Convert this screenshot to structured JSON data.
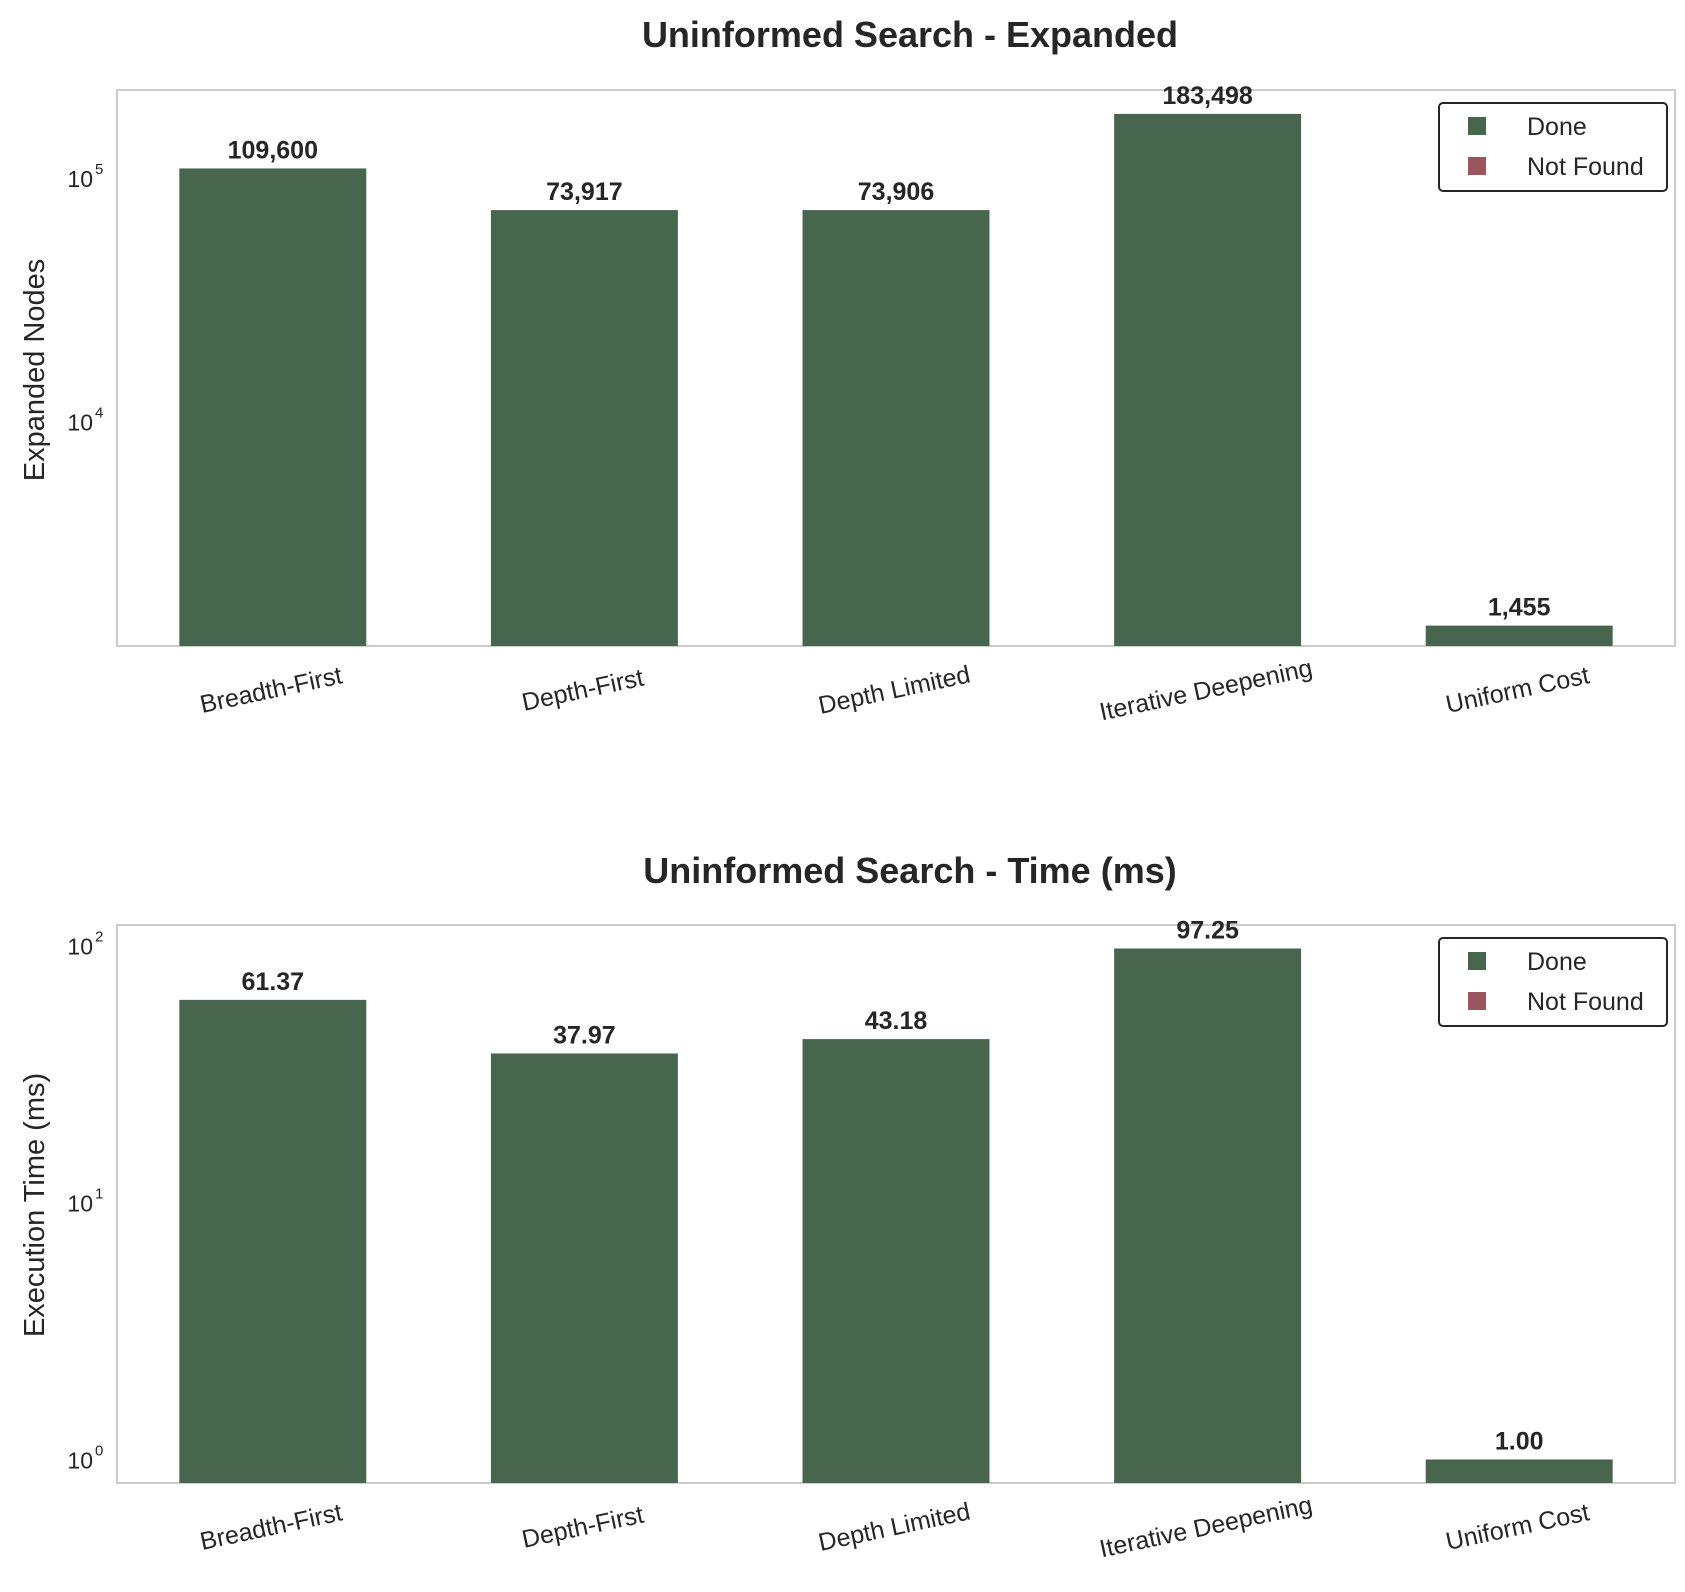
{
  "chart_data": [
    {
      "type": "bar",
      "title": "Uninformed Search - Expanded",
      "xlabel": "",
      "ylabel": "Expanded Nodes",
      "yscale": "log",
      "ylim": [
        1200,
        230000
      ],
      "yticks": [
        {
          "base": "10",
          "exp": "4",
          "value": 10000
        },
        {
          "base": "10",
          "exp": "5",
          "value": 100000
        }
      ],
      "categories": [
        "Breadth-First",
        "Depth-First",
        "Depth Limited",
        "Iterative Deepening",
        "Uniform Cost"
      ],
      "values": [
        109600,
        73917,
        73906,
        183498,
        1455
      ],
      "value_labels": [
        "109,600",
        "73,917",
        "73,906",
        "183,498",
        "1,455"
      ],
      "status": [
        "Done",
        "Done",
        "Done",
        "Done",
        "Done"
      ],
      "legend": {
        "placement": "top-right",
        "entries": [
          {
            "label": "Done",
            "color": "#48664e"
          },
          {
            "label": "Not Found",
            "color": "#9b555c"
          }
        ]
      },
      "grid": false
    },
    {
      "type": "bar",
      "title": "Uninformed Search - Time (ms)",
      "xlabel": "",
      "ylabel": "Execution Time (ms)",
      "yscale": "log",
      "ylim": [
        0.81,
        120
      ],
      "yticks": [
        {
          "base": "10",
          "exp": "0",
          "value": 1
        },
        {
          "base": "10",
          "exp": "1",
          "value": 10
        },
        {
          "base": "10",
          "exp": "2",
          "value": 100
        }
      ],
      "categories": [
        "Breadth-First",
        "Depth-First",
        "Depth Limited",
        "Iterative Deepening",
        "Uniform Cost"
      ],
      "values": [
        61.37,
        37.97,
        43.18,
        97.25,
        1.0
      ],
      "value_labels": [
        "61.37",
        "37.97",
        "43.18",
        "97.25",
        "1.00"
      ],
      "status": [
        "Done",
        "Done",
        "Done",
        "Done",
        "Done"
      ],
      "legend": {
        "placement": "top-right",
        "entries": [
          {
            "label": "Done",
            "color": "#48664e"
          },
          {
            "label": "Not Found",
            "color": "#9b555c"
          }
        ]
      },
      "grid": false
    }
  ]
}
